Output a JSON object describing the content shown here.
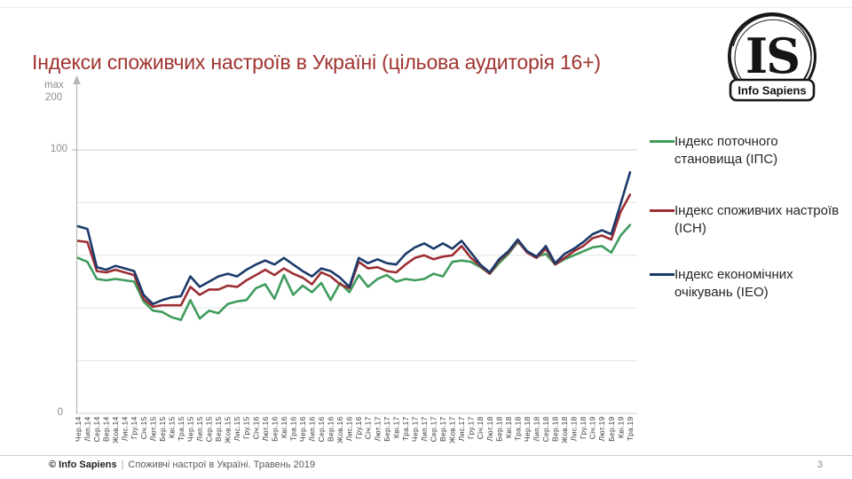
{
  "page": {
    "footer": {
      "brand": "© Info Sapiens",
      "separator": "|",
      "text": "Споживчі настрої в Україні. Травень 2019",
      "page_number": "3"
    },
    "logo": {
      "monogram": "IS",
      "name": "Info Sapiens"
    }
  },
  "legend": [
    {
      "label": "Індекс поточного становища (ІПС)",
      "color": "#3F9C5D"
    },
    {
      "label": "Індекс споживчих настроїв (ІСН)",
      "color": "#9C2F34"
    },
    {
      "label": "Індекс економічних очікувань (ІЕО)",
      "color": "#1B3A6B"
    }
  ],
  "chart_data": {
    "type": "line",
    "title": "Індекси споживчих настроїв в Україні (цільова аудиторія 16+)",
    "xlabel": "",
    "ylabel": "",
    "ylim": [
      0,
      127
    ],
    "grid": true,
    "legend_position": "right",
    "y_axis": {
      "top_annotation": [
        "max",
        "200"
      ],
      "tick_100": "100",
      "tick_0": "0",
      "gridlines": [
        0,
        20,
        40,
        60,
        80,
        100
      ]
    },
    "x": [
      "Чер.14",
      "Лип.14",
      "Сер.14",
      "Вер.14",
      "Жов.14",
      "Лис.14",
      "Гру.14",
      "Січ.15",
      "Лют.15",
      "Бер.15",
      "Кві.15",
      "Тра.15",
      "Чер.15",
      "Лип.15",
      "Сер.15",
      "Вер.15",
      "Жов.15",
      "Лис.15",
      "Гру.15",
      "Січ.16",
      "Лют.16",
      "Бер.16",
      "Кві.16",
      "Тра.16",
      "Чер.16",
      "Лип.16",
      "Сер.16",
      "Вер.16",
      "Жов.16",
      "Лис.16",
      "Гру.16",
      "Січ.17",
      "Лют.17",
      "Бер.17",
      "Кві.17",
      "Тра.17",
      "Чер.17",
      "Лип.17",
      "Сер.17",
      "Вер.17",
      "Жов.17",
      "Лис.17",
      "Гру.17",
      "Січ.18",
      "Лют.18",
      "Бер.18",
      "Кві.18",
      "Тра.18",
      "Чер.18",
      "Лип.18",
      "Сер.18",
      "Вер.18",
      "Жов.18",
      "Лис.18",
      "Гру.18",
      "Січ.19",
      "Лют.19",
      "Бер.19",
      "Кві.19",
      "Тра.19"
    ],
    "series": [
      {
        "id": "ips",
        "name": "Індекс поточного становища (ІПС)",
        "color": "#3F9C5D",
        "values": [
          59,
          57.5,
          51,
          50.5,
          51,
          50.5,
          50,
          42.5,
          39,
          38.5,
          36.5,
          35.5,
          43,
          36,
          39,
          38,
          41.5,
          42.5,
          43,
          47.5,
          49,
          43.5,
          52.5,
          45,
          48.5,
          46,
          49.5,
          43,
          49.5,
          46,
          52.5,
          48,
          51,
          52.5,
          50,
          51,
          50.5,
          51,
          53,
          52,
          57.5,
          58,
          57.5,
          55.5,
          53,
          57,
          60.5,
          65,
          61.5,
          59.5,
          60.5,
          56.5,
          58.5,
          60,
          61.5,
          63,
          63.5,
          61,
          67.5,
          71.5
        ]
      },
      {
        "id": "ich",
        "name": "Індекс споживчих настроїв (ІСН)",
        "color": "#9C2F34",
        "values": [
          65.5,
          65,
          54,
          53.5,
          54.5,
          53.5,
          52.5,
          43.5,
          40.5,
          41,
          41,
          41,
          48,
          45,
          47,
          47,
          48.5,
          48,
          50.5,
          52.5,
          54.5,
          52.5,
          55,
          53,
          51.5,
          49,
          53.5,
          52,
          49,
          47.5,
          57.5,
          55,
          55.5,
          54,
          53.5,
          56.5,
          59,
          60,
          58.5,
          59.5,
          60,
          63.5,
          59,
          56,
          53,
          58,
          61,
          65.5,
          61,
          59,
          62.5,
          56.5,
          59,
          61.5,
          63.5,
          66.5,
          67.5,
          66,
          76.5,
          83
        ]
      },
      {
        "id": "ieo",
        "name": "Індекс економічних очікувань (ІЕО)",
        "color": "#1B3A6B",
        "values": [
          71,
          70,
          55.5,
          54.5,
          56,
          55,
          54,
          45,
          41.5,
          43,
          44,
          44.5,
          52,
          48,
          50,
          52,
          53,
          52,
          54.5,
          56.5,
          58,
          56.5,
          59,
          56.5,
          54,
          52,
          55,
          54,
          51.5,
          48,
          59,
          57,
          58.5,
          57,
          56.5,
          60.5,
          63,
          64.5,
          62.5,
          64.5,
          62.5,
          65.5,
          61,
          56.5,
          53.5,
          58.5,
          61.5,
          66,
          61.5,
          59.5,
          63.5,
          57,
          60.5,
          62.5,
          65,
          68,
          69.5,
          68,
          79.5,
          91.5
        ]
      }
    ]
  }
}
